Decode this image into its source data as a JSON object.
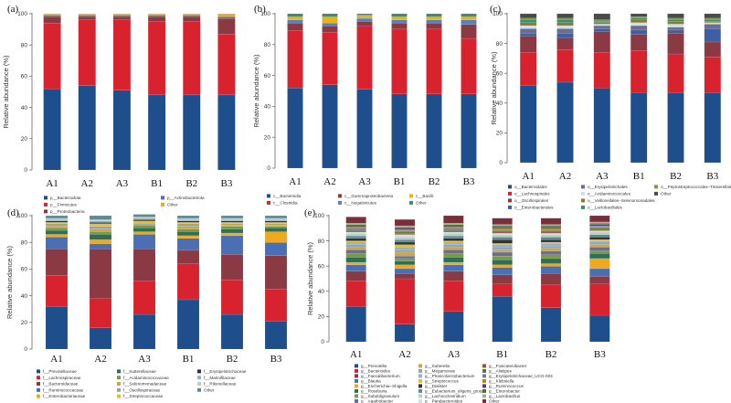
{
  "chart_data": [
    {
      "panel": "(a)",
      "type": "bar",
      "stacked": true,
      "ylabel": "Relative abundance (%)",
      "ylim": [
        0,
        100
      ],
      "yticks": [
        0,
        20,
        40,
        60,
        80,
        100
      ],
      "categories": [
        "A1",
        "A2",
        "A3",
        "B1",
        "B2",
        "B3"
      ],
      "series": [
        {
          "name": "p__Bacteroidota",
          "color": "#1f4e8c",
          "values": [
            52,
            54,
            51,
            48,
            48,
            48
          ]
        },
        {
          "name": "p__Firmicutes",
          "color": "#d8232f",
          "values": [
            42,
            42,
            45,
            47,
            47,
            39
          ]
        },
        {
          "name": "p__Proteobacteria",
          "color": "#8b3a44",
          "values": [
            4,
            2,
            2,
            3,
            3,
            10
          ]
        },
        {
          "name": "p__Actinobacteriota",
          "color": "#4a6fb3",
          "values": [
            1,
            1,
            1,
            1,
            1,
            1
          ]
        },
        {
          "name": "Other",
          "color": "#f0a81c",
          "values": [
            1,
            1,
            1,
            1,
            1,
            2
          ]
        }
      ]
    },
    {
      "panel": "(b)",
      "type": "bar",
      "stacked": true,
      "ylabel": "Relative abundance (%)",
      "ylim": [
        0,
        100
      ],
      "yticks": [
        0,
        20,
        40,
        60,
        80,
        100
      ],
      "categories": [
        "A1",
        "A2",
        "A3",
        "B1",
        "B2",
        "B3"
      ],
      "series": [
        {
          "name": "c__Bacteroidia",
          "color": "#1f4e8c",
          "values": [
            52,
            54,
            51,
            48,
            48,
            48
          ]
        },
        {
          "name": "c__Clostridia",
          "color": "#d8232f",
          "values": [
            37,
            34,
            41,
            42,
            42,
            36
          ]
        },
        {
          "name": "c__Gammaproteobacteria",
          "color": "#8b3a44",
          "values": [
            5,
            4,
            3,
            4,
            4,
            9
          ]
        },
        {
          "name": "c__Negativicutes",
          "color": "#5a7fbd",
          "values": [
            2,
            2,
            2,
            2,
            2,
            3
          ]
        },
        {
          "name": "c__Bacilli",
          "color": "#e8b21a",
          "values": [
            2,
            4,
            2,
            2,
            2,
            2
          ]
        },
        {
          "name": "Other",
          "color": "#3d8c6e",
          "values": [
            2,
            2,
            1,
            2,
            2,
            2
          ]
        }
      ]
    },
    {
      "panel": "(c)",
      "type": "bar",
      "stacked": true,
      "ylabel": "Relative abundance (%)",
      "ylim": [
        0,
        100
      ],
      "yticks": [
        0,
        20,
        40,
        60,
        80,
        100
      ],
      "categories": [
        "A1",
        "A2",
        "A3",
        "B1",
        "B2",
        "B3"
      ],
      "series": [
        {
          "name": "o__Bacteroidales",
          "color": "#1f4e8c",
          "values": [
            52,
            54,
            50,
            47,
            47,
            47
          ]
        },
        {
          "name": "o__Lachnospirales",
          "color": "#d8232f",
          "values": [
            22,
            22,
            24,
            28,
            26,
            24
          ]
        },
        {
          "name": "o__Oscillospirales",
          "color": "#8b3a44",
          "values": [
            11,
            8,
            14,
            11,
            14,
            10
          ]
        },
        {
          "name": "o__Enterobacterales",
          "color": "#3e5fa3",
          "values": [
            2,
            3,
            2,
            3,
            2,
            9
          ]
        },
        {
          "name": "o__Erysipelotrichales",
          "color": "#6a6f90",
          "values": [
            3,
            3,
            2,
            3,
            2,
            3
          ]
        },
        {
          "name": "o__Acidaminococcales",
          "color": "#cfe0ea",
          "values": [
            2,
            2,
            1,
            2,
            2,
            1
          ]
        },
        {
          "name": "o__Veillonellales−Selenomonadales",
          "color": "#8c7a2e",
          "values": [
            2,
            2,
            1,
            2,
            2,
            1
          ]
        },
        {
          "name": "o__Lactobacillales",
          "color": "#3d8c6e",
          "values": [
            2,
            2,
            1,
            1,
            1,
            1
          ]
        },
        {
          "name": "o__Peptostreptococcales−Tissierellales",
          "color": "#7a9a4a",
          "values": [
            1,
            1,
            1,
            1,
            1,
            1
          ]
        },
        {
          "name": "Other",
          "color": "#4a4a4a",
          "values": [
            3,
            3,
            4,
            2,
            3,
            3
          ]
        }
      ]
    },
    {
      "panel": "(d)",
      "type": "bar",
      "stacked": true,
      "ylabel": "Relative abundance (%)",
      "ylim": [
        0,
        100
      ],
      "yticks": [
        0,
        20,
        40,
        60,
        80,
        100
      ],
      "categories": [
        "A1",
        "A2",
        "A3",
        "B1",
        "B2",
        "B3"
      ],
      "series": [
        {
          "name": "f__Prevotellaceae",
          "color": "#1f4e8c",
          "values": [
            32,
            16,
            26,
            37,
            26,
            21
          ]
        },
        {
          "name": "f__Lachnospiraceae",
          "color": "#d8232f",
          "values": [
            23,
            22,
            25,
            27,
            26,
            24
          ]
        },
        {
          "name": "f__Bacteroidaceae",
          "color": "#8b3a44",
          "values": [
            20,
            37,
            24,
            10,
            19,
            25
          ]
        },
        {
          "name": "f__Ruminococcaceae",
          "color": "#4a6fb3",
          "values": [
            9,
            4,
            11,
            9,
            14,
            10
          ]
        },
        {
          "name": "f__Enterobacteriaceae",
          "color": "#f0a81c",
          "values": [
            2,
            3,
            2,
            2,
            2,
            8
          ]
        },
        {
          "name": "f__Sutterellaceae",
          "color": "#2d6f57",
          "values": [
            3,
            4,
            3,
            3,
            3,
            3
          ]
        },
        {
          "name": "f__Acidaminococcaceae",
          "color": "#7a9a4a",
          "values": [
            2,
            2,
            2,
            2,
            2,
            1
          ]
        },
        {
          "name": "f__Selenomonadaceae",
          "color": "#c9a84a",
          "values": [
            1,
            2,
            1,
            2,
            1,
            1
          ]
        },
        {
          "name": "f__Oscillospiraceae",
          "color": "#9aa0b8",
          "values": [
            2,
            2,
            1,
            2,
            1,
            1
          ]
        },
        {
          "name": "f__Streptococcaceae",
          "color": "#e6c02a",
          "values": [
            1,
            2,
            1,
            1,
            1,
            1
          ]
        },
        {
          "name": "f__Erysipelotrichaceae",
          "color": "#333333",
          "values": [
            1,
            1,
            1,
            1,
            1,
            1
          ]
        },
        {
          "name": "f__Marinifilaceae",
          "color": "#8fb3c9",
          "values": [
            1,
            1,
            1,
            1,
            1,
            1
          ]
        },
        {
          "name": "f__Rikenellaceae",
          "color": "#bdd0c0",
          "values": [
            1,
            1,
            1,
            1,
            1,
            1
          ]
        },
        {
          "name": "Other",
          "color": "#5e8a96",
          "values": [
            2,
            3,
            2,
            2,
            2,
            2
          ]
        }
      ]
    },
    {
      "panel": "(e)",
      "type": "bar",
      "stacked": true,
      "ylabel": "Relative abundance (%)",
      "ylim": [
        0,
        100
      ],
      "yticks": [
        0,
        20,
        40,
        60,
        80,
        100
      ],
      "categories": [
        "A1",
        "A2",
        "A3",
        "B1",
        "B2",
        "B3"
      ],
      "series": [
        {
          "name": "g__Prevotella",
          "color": "#1f4e8c",
          "values": [
            28,
            14,
            24,
            36,
            27,
            21
          ]
        },
        {
          "name": "g__Bacteroides",
          "color": "#d8232f",
          "values": [
            20,
            36,
            24,
            10,
            18,
            25
          ]
        },
        {
          "name": "g__Faecalibacterium",
          "color": "#8b3a44",
          "values": [
            8,
            4,
            8,
            7,
            9,
            6
          ]
        },
        {
          "name": "g__Blautia",
          "color": "#4a6fb3",
          "values": [
            5,
            4,
            5,
            6,
            6,
            6
          ]
        },
        {
          "name": "g__Escherichia−Shigella",
          "color": "#f0a81c",
          "values": [
            2,
            3,
            2,
            2,
            2,
            8
          ]
        },
        {
          "name": "g__Roseburia",
          "color": "#2d6f57",
          "values": [
            4,
            3,
            4,
            4,
            4,
            4
          ]
        },
        {
          "name": "g__Subdoligranulum",
          "color": "#7a9a4a",
          "values": [
            3,
            2,
            3,
            3,
            3,
            2
          ]
        },
        {
          "name": "g__Agathobacter",
          "color": "#6a6f90",
          "values": [
            3,
            2,
            3,
            3,
            3,
            3
          ]
        },
        {
          "name": "g__Sutterella",
          "color": "#c9a84a",
          "values": [
            2,
            3,
            2,
            2,
            2,
            2
          ]
        },
        {
          "name": "g__Megamonas",
          "color": "#9aa0b8",
          "values": [
            2,
            2,
            2,
            2,
            2,
            2
          ]
        },
        {
          "name": "g__Phascolarctobacterium",
          "color": "#8fb3c9",
          "values": [
            2,
            2,
            2,
            2,
            2,
            1
          ]
        },
        {
          "name": "g__Streptococcus",
          "color": "#e6c02a",
          "values": [
            1,
            2,
            1,
            1,
            1,
            1
          ]
        },
        {
          "name": "g__Dialister",
          "color": "#333333",
          "values": [
            2,
            2,
            2,
            3,
            2,
            2
          ]
        },
        {
          "name": "g__Eubacterium_eligens_group",
          "color": "#5e8a96",
          "values": [
            2,
            2,
            2,
            2,
            2,
            2
          ]
        },
        {
          "name": "g__Lachnoclostridium",
          "color": "#bdd0c0",
          "values": [
            2,
            2,
            2,
            2,
            2,
            2
          ]
        },
        {
          "name": "g__Parabacteroides",
          "color": "#cfe0ea",
          "values": [
            1,
            2,
            1,
            1,
            1,
            1
          ]
        },
        {
          "name": "g__Fusicatenibacter",
          "color": "#a0522d",
          "values": [
            1,
            1,
            1,
            1,
            1,
            1
          ]
        },
        {
          "name": "g__Alistipes",
          "color": "#4f7942",
          "values": [
            1,
            1,
            1,
            1,
            1,
            1
          ]
        },
        {
          "name": "g__Erysipelotrichaceae_UCG-003",
          "color": "#708090",
          "values": [
            1,
            1,
            1,
            1,
            1,
            1
          ]
        },
        {
          "name": "g__Klebsiella",
          "color": "#b8860b",
          "values": [
            1,
            1,
            1,
            1,
            1,
            1
          ]
        },
        {
          "name": "g__Ruminococcus",
          "color": "#483d8b",
          "values": [
            1,
            1,
            1,
            1,
            1,
            1
          ]
        },
        {
          "name": "g__Enterobacter",
          "color": "#556b2f",
          "values": [
            1,
            1,
            1,
            1,
            1,
            1
          ]
        },
        {
          "name": "g__Lactobacillus",
          "color": "#8fbc8f",
          "values": [
            1,
            1,
            1,
            1,
            1,
            1
          ]
        },
        {
          "name": "Other",
          "color": "#7b2e3a",
          "values": [
            5,
            5,
            6,
            5,
            5,
            5
          ]
        }
      ]
    }
  ]
}
